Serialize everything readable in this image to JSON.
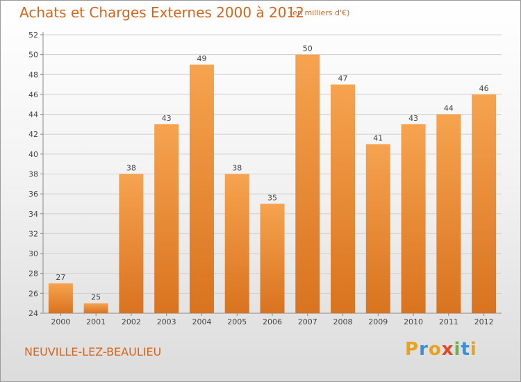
{
  "header": {
    "title": "Achats et Charges Externes 2000 à 2012",
    "subtitle": "(en milliers d'€)"
  },
  "footer": {
    "commune": "NEUVILLE-LEZ-BEAULIEU",
    "logo_text": "Proxiti",
    "logo_letters": [
      {
        "ch": "P",
        "color": "#e8a21c"
      },
      {
        "ch": "r",
        "color": "#3a8fd6"
      },
      {
        "ch": "o",
        "color": "#e8a21c"
      },
      {
        "ch": "x",
        "color": "#e04a2a"
      },
      {
        "ch": "i",
        "color": "#6cb33f"
      },
      {
        "ch": "t",
        "color": "#3a8fd6"
      },
      {
        "ch": "i",
        "color": "#e8a21c"
      }
    ]
  },
  "colors": {
    "bar_top": "#f6a34f",
    "bar_bottom": "#d9731f",
    "accent_text": "#d6651c",
    "grid": "#cfcfcf"
  },
  "chart_data": {
    "type": "bar",
    "title": "Achats et Charges Externes 2000 à 2012",
    "subtitle": "(en milliers d'€)",
    "categories": [
      "2000",
      "2001",
      "2002",
      "2003",
      "2004",
      "2005",
      "2006",
      "2007",
      "2008",
      "2009",
      "2010",
      "2011",
      "2012"
    ],
    "values": [
      27,
      25,
      38,
      43,
      49,
      38,
      35,
      50,
      47,
      41,
      43,
      44,
      46
    ],
    "ylim": [
      24,
      52
    ],
    "yticks": [
      24,
      26,
      28,
      30,
      32,
      34,
      36,
      38,
      40,
      42,
      44,
      46,
      48,
      50,
      52
    ],
    "grid": true,
    "data_labels": true,
    "xlabel": "",
    "ylabel": ""
  }
}
